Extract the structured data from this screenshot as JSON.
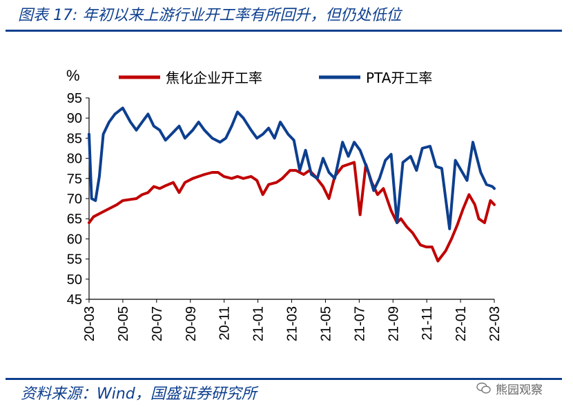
{
  "title": "图表 17:  年初以来上游行业开工率有所回升，但仍处低位",
  "source": "资料来源：Wind，国盛证券研究所",
  "watermark": "熊园观察",
  "chart_data": {
    "type": "line",
    "ylabel": "%",
    "ylim": [
      45,
      95
    ],
    "yticks": [
      45,
      50,
      55,
      60,
      65,
      70,
      75,
      80,
      85,
      90,
      95
    ],
    "xlim": [
      2020.167,
      2022.25
    ],
    "xticks": [
      "20-03",
      "20-05",
      "20-07",
      "20-09",
      "20-11",
      "21-01",
      "21-03",
      "21-05",
      "21-07",
      "21-09",
      "21-11",
      "22-01",
      "22-03"
    ],
    "legend": "top",
    "colors": {
      "coke": "#c00000",
      "pta": "#0d3f8f"
    },
    "series": [
      {
        "name": "焦化企业开工率",
        "color": "#c00000",
        "points": [
          [
            2020.167,
            64
          ],
          [
            2020.19,
            65.5
          ],
          [
            2020.23,
            66.5
          ],
          [
            2020.27,
            67.5
          ],
          [
            2020.31,
            68.5
          ],
          [
            2020.34,
            69.5
          ],
          [
            2020.38,
            69.8
          ],
          [
            2020.41,
            70
          ],
          [
            2020.44,
            71
          ],
          [
            2020.47,
            71.5
          ],
          [
            2020.5,
            73
          ],
          [
            2020.53,
            72.5
          ],
          [
            2020.56,
            73.2
          ],
          [
            2020.6,
            74
          ],
          [
            2020.63,
            71.5
          ],
          [
            2020.66,
            74
          ],
          [
            2020.7,
            75
          ],
          [
            2020.73,
            75.5
          ],
          [
            2020.76,
            76
          ],
          [
            2020.8,
            76.5
          ],
          [
            2020.83,
            76.5
          ],
          [
            2020.86,
            75.5
          ],
          [
            2020.9,
            75
          ],
          [
            2020.93,
            75.5
          ],
          [
            2020.96,
            75
          ],
          [
            2021.0,
            75.5
          ],
          [
            2021.03,
            74.5
          ],
          [
            2021.06,
            71
          ],
          [
            2021.09,
            73.5
          ],
          [
            2021.13,
            74
          ],
          [
            2021.16,
            75
          ],
          [
            2021.2,
            77
          ],
          [
            2021.23,
            77
          ],
          [
            2021.27,
            76
          ],
          [
            2021.3,
            77
          ],
          [
            2021.33,
            75.5
          ],
          [
            2021.37,
            73
          ],
          [
            2021.4,
            70
          ],
          [
            2021.43,
            75.5
          ],
          [
            2021.47,
            78
          ],
          [
            2021.5,
            78.5
          ],
          [
            2021.53,
            79
          ],
          [
            2021.56,
            66
          ],
          [
            2021.59,
            78.5
          ],
          [
            2021.62,
            74
          ],
          [
            2021.65,
            71
          ],
          [
            2021.68,
            72.5
          ],
          [
            2021.72,
            67
          ],
          [
            2021.75,
            64
          ],
          [
            2021.77,
            65
          ],
          [
            2021.8,
            63
          ],
          [
            2021.83,
            61.5
          ],
          [
            2021.87,
            58.5
          ],
          [
            2021.9,
            58
          ],
          [
            2021.93,
            58
          ],
          [
            2021.96,
            54.5
          ],
          [
            2022.0,
            57
          ],
          [
            2022.03,
            60
          ],
          [
            2022.06,
            63.5
          ],
          [
            2022.09,
            67.5
          ],
          [
            2022.12,
            71
          ],
          [
            2022.15,
            68.5
          ],
          [
            2022.17,
            65
          ],
          [
            2022.2,
            64
          ],
          [
            2022.23,
            69.5
          ],
          [
            2022.25,
            68.5
          ]
        ]
      },
      {
        "name": "PTA开工率",
        "color": "#0d3f8f",
        "points": [
          [
            2020.167,
            86
          ],
          [
            2020.18,
            70
          ],
          [
            2020.2,
            69.5
          ],
          [
            2020.22,
            75.5
          ],
          [
            2020.24,
            86
          ],
          [
            2020.27,
            89
          ],
          [
            2020.3,
            91
          ],
          [
            2020.34,
            92.5
          ],
          [
            2020.38,
            89
          ],
          [
            2020.41,
            87
          ],
          [
            2020.44,
            89
          ],
          [
            2020.47,
            91
          ],
          [
            2020.5,
            88
          ],
          [
            2020.53,
            87
          ],
          [
            2020.56,
            84.5
          ],
          [
            2020.59,
            86
          ],
          [
            2020.63,
            88
          ],
          [
            2020.66,
            85
          ],
          [
            2020.7,
            87
          ],
          [
            2020.73,
            89
          ],
          [
            2020.76,
            87
          ],
          [
            2020.8,
            85
          ],
          [
            2020.84,
            84
          ],
          [
            2020.87,
            85
          ],
          [
            2020.9,
            88
          ],
          [
            2020.93,
            91.5
          ],
          [
            2020.96,
            90
          ],
          [
            2021.0,
            87
          ],
          [
            2021.03,
            85
          ],
          [
            2021.06,
            86
          ],
          [
            2021.09,
            87.5
          ],
          [
            2021.12,
            85
          ],
          [
            2021.15,
            89
          ],
          [
            2021.19,
            86
          ],
          [
            2021.22,
            84.5
          ],
          [
            2021.25,
            77
          ],
          [
            2021.28,
            82
          ],
          [
            2021.31,
            76
          ],
          [
            2021.34,
            75
          ],
          [
            2021.37,
            80
          ],
          [
            2021.4,
            76.5
          ],
          [
            2021.43,
            75
          ],
          [
            2021.47,
            84
          ],
          [
            2021.5,
            80.5
          ],
          [
            2021.53,
            84
          ],
          [
            2021.56,
            82
          ],
          [
            2021.6,
            77
          ],
          [
            2021.63,
            72
          ],
          [
            2021.66,
            75
          ],
          [
            2021.69,
            79.5
          ],
          [
            2021.72,
            81
          ],
          [
            2021.75,
            64
          ],
          [
            2021.78,
            79
          ],
          [
            2021.82,
            80.5
          ],
          [
            2021.85,
            77
          ],
          [
            2021.88,
            82.5
          ],
          [
            2021.92,
            83
          ],
          [
            2021.95,
            78
          ],
          [
            2021.98,
            77.5
          ],
          [
            2022.02,
            62.5
          ],
          [
            2022.05,
            79.5
          ],
          [
            2022.08,
            77
          ],
          [
            2022.11,
            74.5
          ],
          [
            2022.14,
            84
          ],
          [
            2022.18,
            76.5
          ],
          [
            2022.21,
            73.5
          ],
          [
            2022.24,
            73
          ],
          [
            2022.25,
            72.5
          ]
        ]
      }
    ]
  }
}
